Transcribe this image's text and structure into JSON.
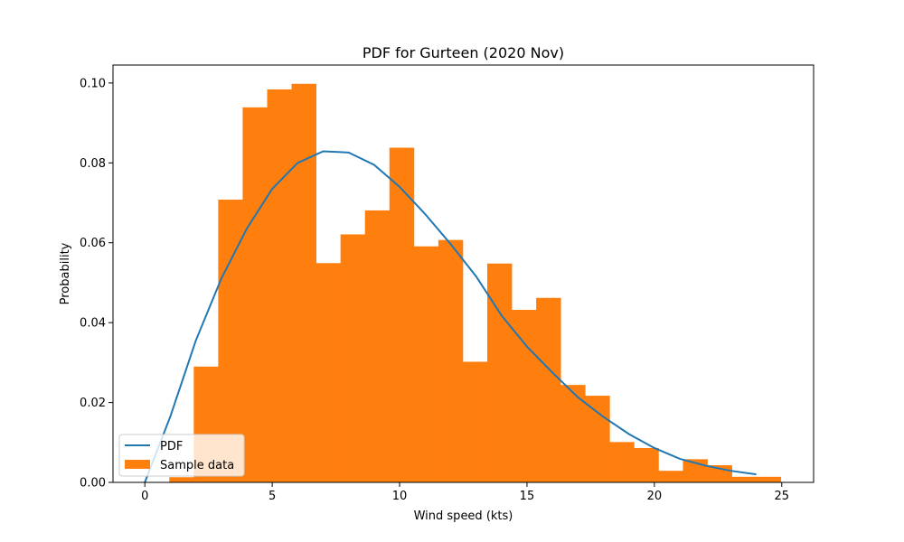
{
  "chart_data": {
    "type": "bar",
    "title": "PDF for Gurteen (2020 Nov)",
    "xlabel": "Wind speed (kts)",
    "ylabel": "Probability",
    "xlim": [
      -1.25,
      26.25
    ],
    "ylim": [
      0,
      0.1045
    ],
    "x_ticks": [
      0,
      5,
      10,
      15,
      20,
      25
    ],
    "x_tick_labels": [
      "0",
      "5",
      "10",
      "15",
      "20",
      "25"
    ],
    "y_ticks": [
      0.0,
      0.02,
      0.04,
      0.06,
      0.08,
      0.1
    ],
    "y_tick_labels": [
      "0.00",
      "0.02",
      "0.04",
      "0.06",
      "0.08",
      "0.10"
    ],
    "grid": false,
    "legend_position": "lower-left",
    "colors": {
      "histogram": "#ff7f0e",
      "pdf_line": "#1f77b4"
    },
    "series": [
      {
        "name": "Sample data",
        "type": "histogram",
        "bin_edges": [
          0.96,
          1.92,
          2.88,
          3.84,
          4.8,
          5.76,
          6.72,
          7.68,
          8.64,
          9.6,
          10.56,
          11.52,
          12.48,
          13.44,
          14.4,
          15.36,
          16.32,
          17.28,
          18.24,
          19.2,
          20.16,
          21.12,
          22.08,
          23.04,
          24.0,
          24.96
        ],
        "values": [
          0.0013,
          0.029,
          0.0708,
          0.0939,
          0.0984,
          0.0998,
          0.0549,
          0.0621,
          0.0681,
          0.0838,
          0.0591,
          0.0607,
          0.0302,
          0.0548,
          0.0432,
          0.0462,
          0.0244,
          0.0217,
          0.0101,
          0.0086,
          0.0029,
          0.0058,
          0.0043,
          0.0014,
          0.0014
        ]
      },
      {
        "name": "PDF",
        "type": "line",
        "x": [
          0,
          1,
          2,
          3,
          4,
          5,
          6,
          7,
          8,
          9,
          10,
          11,
          12,
          13,
          14,
          15,
          16,
          17,
          18,
          19,
          20,
          21,
          22,
          23,
          24
        ],
        "y": [
          0.0,
          0.0165,
          0.0355,
          0.051,
          0.0635,
          0.0735,
          0.08,
          0.0829,
          0.0826,
          0.0795,
          0.074,
          0.0672,
          0.0597,
          0.0516,
          0.0418,
          0.034,
          0.0275,
          0.0213,
          0.0164,
          0.0121,
          0.0086,
          0.0059,
          0.0042,
          0.0029,
          0.002
        ]
      }
    ]
  }
}
